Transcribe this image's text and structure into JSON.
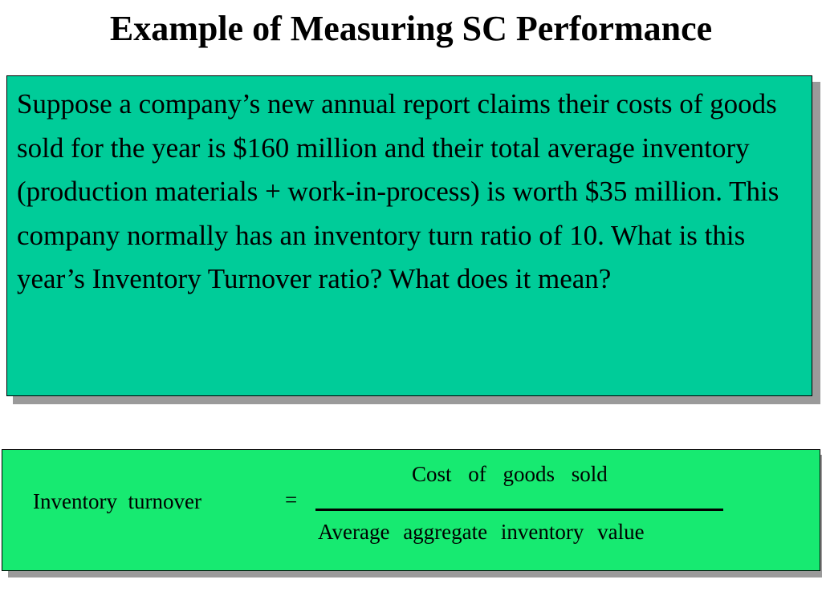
{
  "slide": {
    "title": "Example of Measuring SC Performance",
    "question_box": {
      "text": "Suppose a company’s new annual report claims their costs of goods sold for the year is $160 million and their total average inventory (production materials + work-in-process) is worth $35 million.  This company normally has an inventory turn ratio of 10.  What is this year’s  Inventory Turnover ratio?  What does it mean?"
    },
    "formula_box": {
      "lhs": "Inventory  turnover",
      "equals": "=",
      "numerator": "Cost of goods sold",
      "denominator": "Average aggregate inventory value"
    },
    "colors": {
      "question_box_fill": "#00cc99",
      "formula_box_fill": "#17ea71",
      "shadow": "#9a9a9a"
    }
  }
}
